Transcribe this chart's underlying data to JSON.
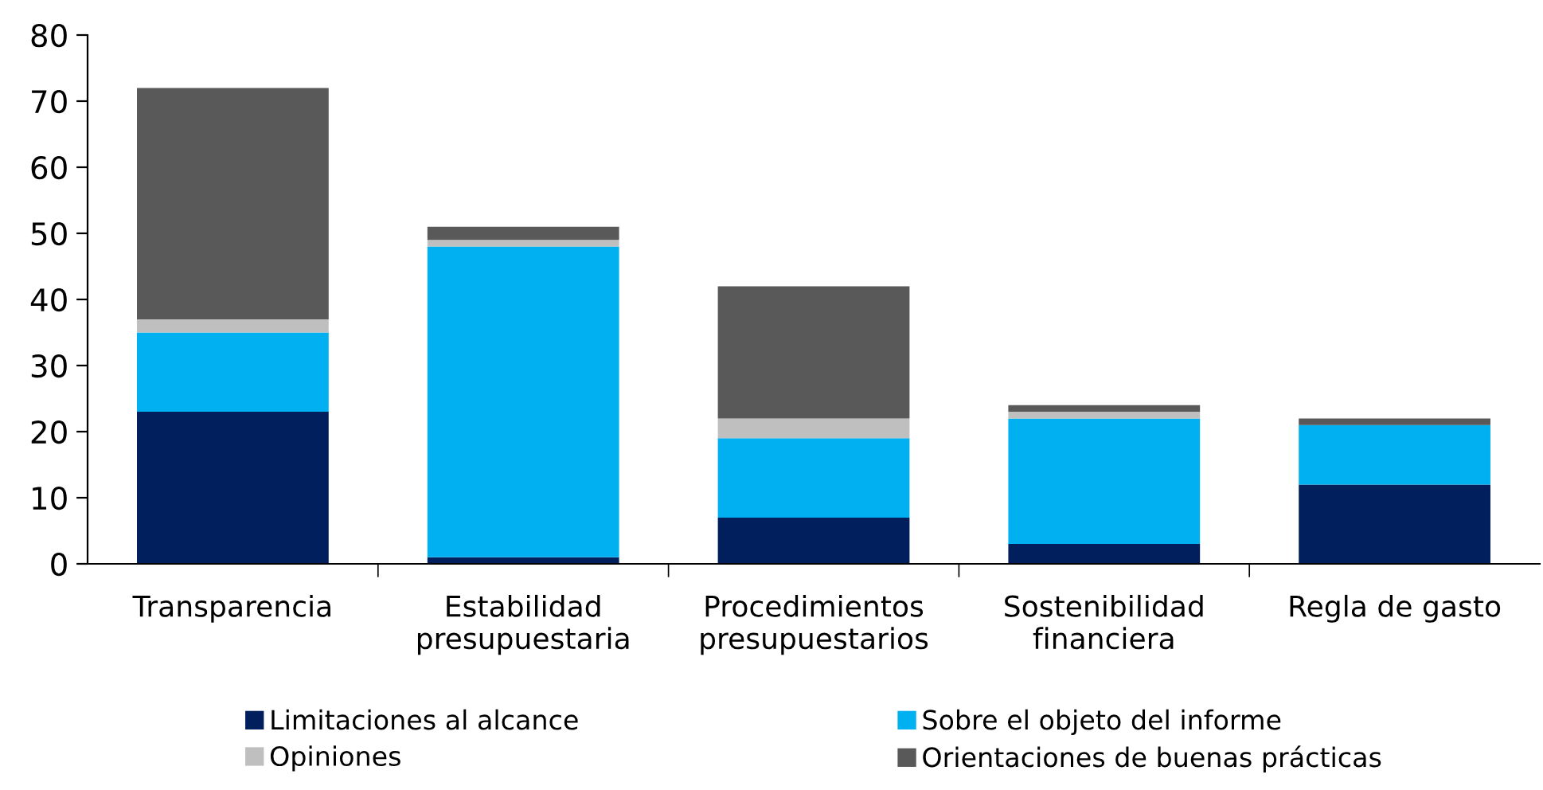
{
  "chart_data": {
    "type": "bar",
    "stacked": true,
    "categories": [
      "Transparencia",
      "Estabilidad\npresupuestaria",
      "Procedimientos\npresupuestarios",
      "Sostenibilidad\nfinanciera",
      "Regla de gasto"
    ],
    "series": [
      {
        "name": "Limitaciones al alcance",
        "color": "#001f5c",
        "values": [
          23,
          1,
          7,
          3,
          12
        ]
      },
      {
        "name": "Sobre el objeto del informe",
        "color": "#00b0f0",
        "values": [
          12,
          47,
          12,
          19,
          9
        ]
      },
      {
        "name": "Opiniones",
        "color": "#bfbfbf",
        "values": [
          2,
          1,
          3,
          1,
          0
        ]
      },
      {
        "name": "Orientaciones de buenas prácticas",
        "color": "#595959",
        "values": [
          35,
          2,
          20,
          1,
          1
        ]
      }
    ],
    "ylim": [
      0,
      80
    ],
    "yticks": [
      0,
      10,
      20,
      30,
      40,
      50,
      60,
      70,
      80
    ],
    "grid": false,
    "legend": "bottom"
  }
}
